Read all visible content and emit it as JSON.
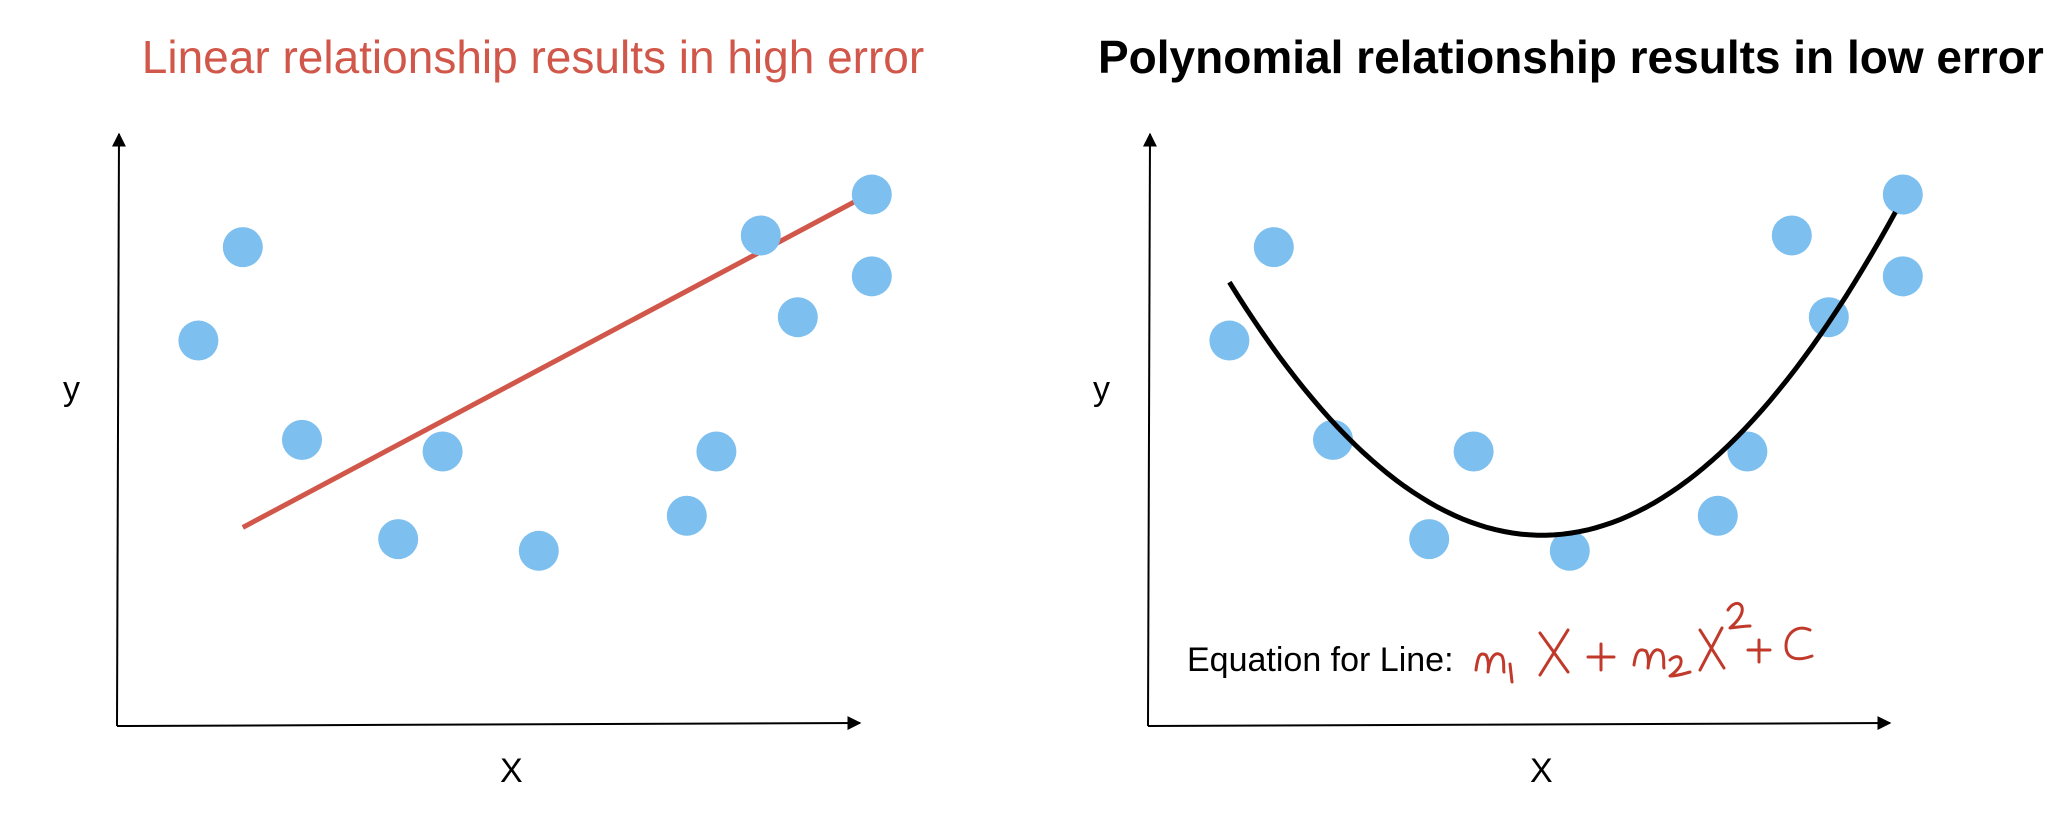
{
  "colors": {
    "point": "#7DBFEF",
    "linear_fit": "#D0574A",
    "poly_fit": "#000000",
    "axis": "#000000",
    "left_title": "#D0574A",
    "right_title": "#000000",
    "handwriting": "#C0392B"
  },
  "left_panel": {
    "title": "Linear relationship results in high error",
    "x_label": "X",
    "y_label": "y"
  },
  "right_panel": {
    "title": "Polynomial relationship results in low error",
    "x_label": "X",
    "y_label": "y",
    "equation_label": "Equation for Line:",
    "equation_handwritten": "m₁X + m₂X² + C"
  },
  "chart_data": [
    {
      "type": "scatter",
      "title": "Linear relationship results in high error",
      "xlabel": "X",
      "ylabel": "y",
      "xlim": [
        0,
        100
      ],
      "ylim": [
        0,
        100
      ],
      "grid": false,
      "points": [
        {
          "x": 11,
          "y": 66
        },
        {
          "x": 17,
          "y": 82
        },
        {
          "x": 25,
          "y": 49
        },
        {
          "x": 38,
          "y": 32
        },
        {
          "x": 44,
          "y": 47
        },
        {
          "x": 57,
          "y": 30
        },
        {
          "x": 77,
          "y": 36
        },
        {
          "x": 81,
          "y": 47
        },
        {
          "x": 87,
          "y": 84
        },
        {
          "x": 92,
          "y": 70
        },
        {
          "x": 102,
          "y": 91
        },
        {
          "x": 102,
          "y": 77
        }
      ],
      "fit": {
        "kind": "linear",
        "x0": 17,
        "y0": 34,
        "x1": 100,
        "y1": 90
      }
    },
    {
      "type": "scatter",
      "title": "Polynomial relationship results in low error",
      "xlabel": "X",
      "ylabel": "y",
      "xlim": [
        0,
        100
      ],
      "ylim": [
        0,
        100
      ],
      "grid": false,
      "points": [
        {
          "x": 11,
          "y": 66
        },
        {
          "x": 17,
          "y": 82
        },
        {
          "x": 25,
          "y": 49
        },
        {
          "x": 38,
          "y": 32
        },
        {
          "x": 44,
          "y": 47
        },
        {
          "x": 57,
          "y": 30
        },
        {
          "x": 77,
          "y": 36
        },
        {
          "x": 81,
          "y": 47
        },
        {
          "x": 87,
          "y": 84
        },
        {
          "x": 92,
          "y": 70
        },
        {
          "x": 102,
          "y": 91
        },
        {
          "x": 102,
          "y": 77
        }
      ],
      "fit": {
        "kind": "polynomial",
        "degree": 2,
        "x_range": [
          11,
          101
        ],
        "curve": [
          [
            11,
            76
          ],
          [
            57,
            33
          ],
          [
            101,
            88
          ]
        ]
      }
    }
  ]
}
